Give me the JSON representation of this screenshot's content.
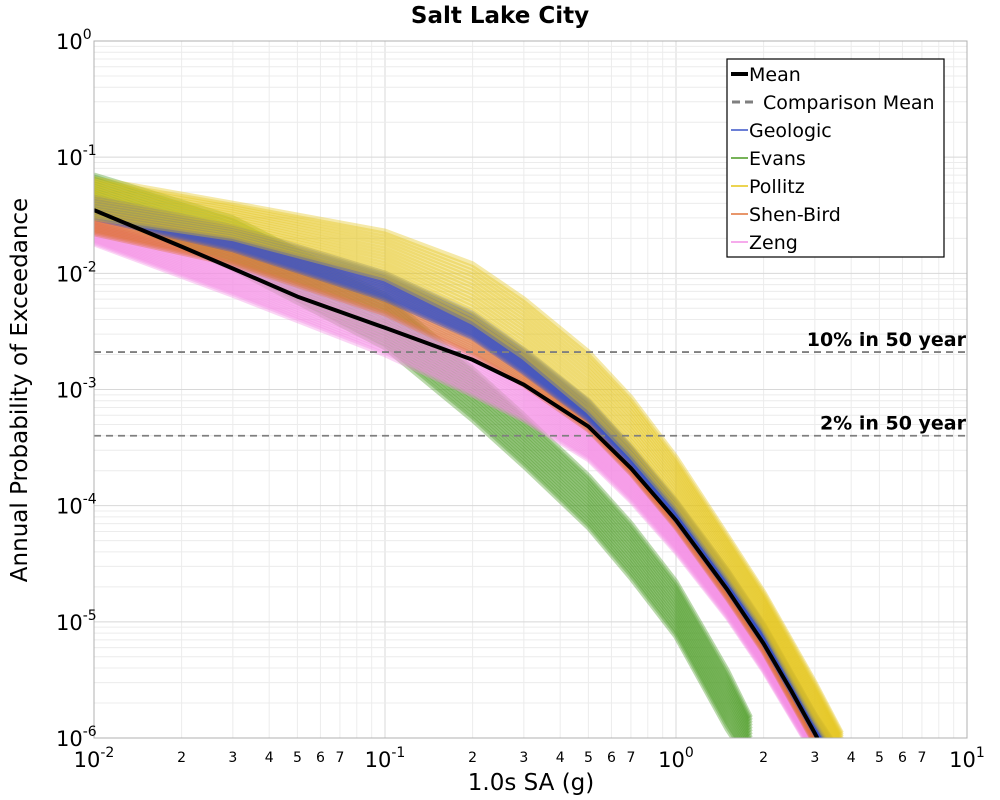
{
  "chart_data": {
    "type": "line",
    "title": "Salt Lake City",
    "xlabel": "1.0s SA (g)",
    "ylabel": "Annual Probability of Exceedance",
    "x_scale": "log",
    "y_scale": "log",
    "xlim": [
      0.01,
      10
    ],
    "ylim": [
      1e-06,
      1
    ],
    "grid": true,
    "legend_position": "top-right",
    "x_ticks_major": [
      {
        "base": "10",
        "exp": "-2"
      },
      {
        "base": "10",
        "exp": "-1"
      },
      {
        "base": "10",
        "exp": "0"
      },
      {
        "base": "10",
        "exp": "1"
      }
    ],
    "y_ticks_major": [
      {
        "base": "10",
        "exp": "0"
      },
      {
        "base": "10",
        "exp": "-1"
      },
      {
        "base": "10",
        "exp": "-2"
      },
      {
        "base": "10",
        "exp": "-3"
      },
      {
        "base": "10",
        "exp": "-4"
      },
      {
        "base": "10",
        "exp": "-5"
      },
      {
        "base": "10",
        "exp": "-6"
      }
    ],
    "x_ticks_minor_labels": [
      "2",
      "3",
      "4",
      "5",
      "6",
      "7"
    ],
    "reference_lines": [
      {
        "label": "10% in 50 year",
        "y": 0.0021
      },
      {
        "label": "2% in 50 year",
        "y": 0.0004
      }
    ],
    "legend": [
      {
        "label": "Mean",
        "color": "#000000",
        "style": "solid-thick"
      },
      {
        "label": "Comparison Mean",
        "color": "#7f7f7f",
        "style": "dashed"
      },
      {
        "label": "Geologic",
        "color": "#3a55c8",
        "style": "solid"
      },
      {
        "label": "Evans",
        "color": "#4a9a22",
        "style": "solid"
      },
      {
        "label": "Pollitz",
        "color": "#e5c619",
        "style": "solid"
      },
      {
        "label": "Shen-Bird",
        "color": "#e0743a",
        "style": "solid"
      },
      {
        "label": "Zeng",
        "color": "#f48fe6",
        "style": "solid"
      }
    ],
    "series": [
      {
        "name": "Mean",
        "x": [
          0.01,
          0.02,
          0.03,
          0.05,
          0.1,
          0.2,
          0.3,
          0.5,
          0.7,
          1.0,
          1.5,
          2.0,
          2.5,
          3.0,
          3.4
        ],
        "y": [
          0.035,
          0.017,
          0.011,
          0.0063,
          0.0034,
          0.0018,
          0.0011,
          0.00048,
          0.00021,
          7.5e-05,
          1.9e-05,
          6.5e-06,
          2.5e-06,
          1.1e-06,
          6e-07
        ]
      },
      {
        "name": "Geologic",
        "x": [
          0.01,
          0.03,
          0.1,
          0.2,
          0.3,
          0.5,
          0.7,
          1.0,
          1.5,
          2.0,
          3.0,
          3.6
        ],
        "y_low": [
          0.03,
          0.016,
          0.006,
          0.0028,
          0.0014,
          0.00055,
          0.00023,
          7.5e-05,
          1.9e-05,
          6.5e-06,
          1.1e-06,
          6e-07
        ],
        "y_high": [
          0.045,
          0.025,
          0.01,
          0.0045,
          0.0022,
          0.0008,
          0.00032,
          0.00011,
          2.8e-05,
          9.5e-06,
          1.6e-06,
          8e-07
        ]
      },
      {
        "name": "Evans",
        "x": [
          0.01,
          0.03,
          0.1,
          0.2,
          0.3,
          0.5,
          0.7,
          1.0,
          1.5,
          1.8
        ],
        "y_low": [
          0.035,
          0.011,
          0.0023,
          0.00055,
          0.00022,
          6.5e-05,
          2.4e-05,
          7.5e-06,
          1.2e-06,
          6e-07
        ],
        "y_high": [
          0.07,
          0.03,
          0.0065,
          0.0015,
          0.0006,
          0.00018,
          7e-05,
          2.2e-05,
          3.8e-06,
          1.5e-06
        ]
      },
      {
        "name": "Pollitz",
        "x": [
          0.01,
          0.03,
          0.1,
          0.2,
          0.3,
          0.5,
          0.7,
          1.0,
          1.5,
          2.0,
          3.0,
          3.7
        ],
        "y_low": [
          0.03,
          0.02,
          0.009,
          0.0038,
          0.0019,
          0.00065,
          0.00027,
          9.5e-05,
          2.4e-05,
          8.5e-06,
          1.4e-06,
          6e-07
        ],
        "y_high": [
          0.065,
          0.04,
          0.023,
          0.012,
          0.006,
          0.0021,
          0.00085,
          0.00026,
          5.5e-05,
          1.8e-05,
          3e-06,
          1.1e-06
        ]
      },
      {
        "name": "Shen-Bird",
        "x": [
          0.01,
          0.03,
          0.1,
          0.2,
          0.3,
          0.5,
          0.7,
          1.0,
          1.5,
          2.0,
          3.0,
          3.5
        ],
        "y_low": [
          0.022,
          0.012,
          0.0045,
          0.002,
          0.0011,
          0.00045,
          0.00019,
          6.5e-05,
          1.6e-05,
          5.5e-06,
          9e-07,
          6e-07
        ],
        "y_high": [
          0.035,
          0.02,
          0.009,
          0.004,
          0.002,
          0.0007,
          0.00029,
          0.0001,
          2.5e-05,
          8.5e-06,
          1.4e-06,
          8e-07
        ]
      },
      {
        "name": "Zeng",
        "x": [
          0.01,
          0.03,
          0.1,
          0.2,
          0.3,
          0.5,
          0.7,
          1.0,
          1.5,
          2.0,
          3.0,
          3.4
        ],
        "y_low": [
          0.018,
          0.0065,
          0.002,
          0.0009,
          0.00055,
          0.00025,
          0.00011,
          4e-05,
          1.1e-05,
          3.8e-06,
          7e-07,
          5e-07
        ],
        "y_high": [
          0.028,
          0.012,
          0.0045,
          0.002,
          0.0011,
          0.00045,
          0.0002,
          7e-05,
          1.8e-05,
          6e-06,
          1e-06,
          7e-07
        ]
      }
    ]
  }
}
